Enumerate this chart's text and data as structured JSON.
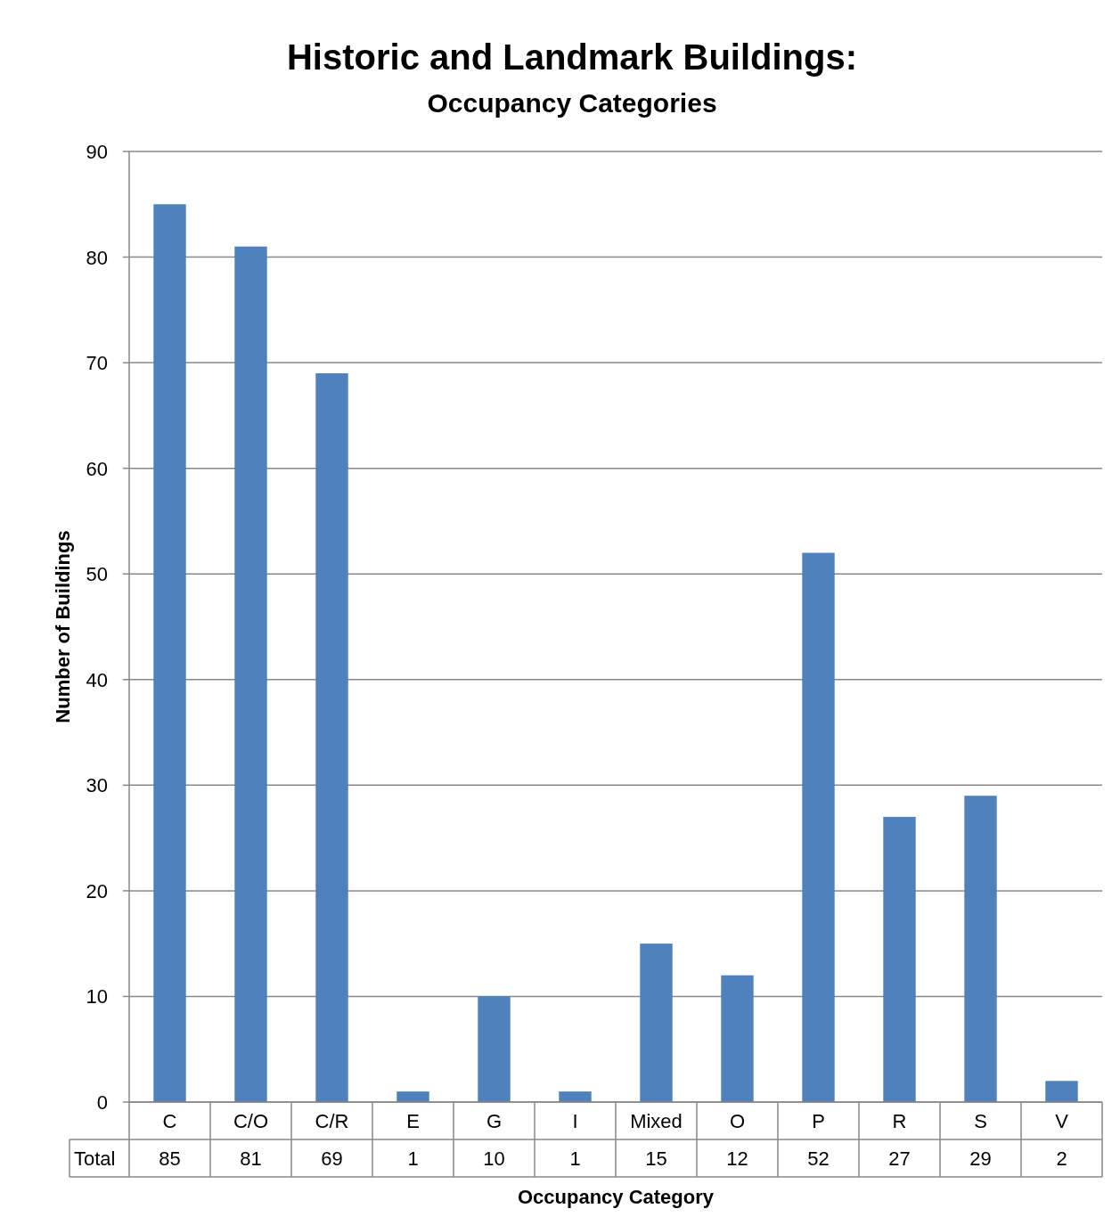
{
  "chart_data": {
    "type": "bar",
    "title": "Historic and Landmark Buildings:",
    "subtitle": "Occupancy Categories",
    "xlabel": "Occupancy Category",
    "ylabel": "Number of Buildings",
    "categories": [
      "C",
      "C/O",
      "C/R",
      "E",
      "G",
      "I",
      "Mixed",
      "O",
      "P",
      "R",
      "S",
      "V"
    ],
    "series": [
      {
        "name": "Total",
        "color": "#4f81bd",
        "values": [
          85,
          81,
          69,
          1,
          10,
          1,
          15,
          12,
          52,
          27,
          29,
          2
        ]
      }
    ],
    "ylim": [
      0,
      90
    ],
    "yticks": [
      0,
      10,
      20,
      30,
      40,
      50,
      60,
      70,
      80,
      90
    ],
    "grid": "y",
    "data_labels": true
  }
}
